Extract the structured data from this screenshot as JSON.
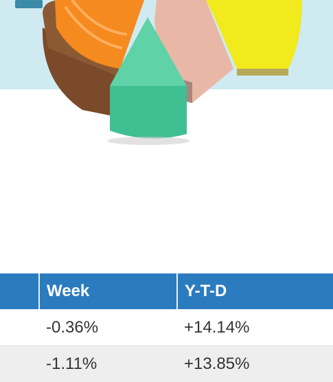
{
  "table": {
    "header": [
      "Week",
      "Y-T-D"
    ],
    "rows": [
      [
        "-0.36%",
        "+14.14%"
      ],
      [
        "-1.11%",
        "+13.85%"
      ]
    ]
  }
}
